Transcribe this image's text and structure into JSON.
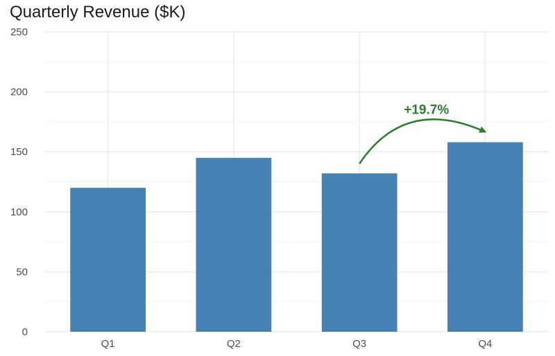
{
  "chart_data": {
    "type": "bar",
    "title": "Quarterly Revenue ($K)",
    "categories": [
      "Q1",
      "Q2",
      "Q3",
      "Q4"
    ],
    "values": [
      120,
      145,
      132,
      158
    ],
    "xlabel": "",
    "ylabel": "",
    "ylim": [
      0,
      250
    ],
    "yticks": [
      0,
      50,
      100,
      150,
      200,
      250
    ],
    "grid": true,
    "legend": "none",
    "bar_color": "#4682B4",
    "annotation": {
      "text": "+19.7%",
      "from_category": "Q3",
      "to_category": "Q4",
      "color": "#2E7D32"
    }
  }
}
